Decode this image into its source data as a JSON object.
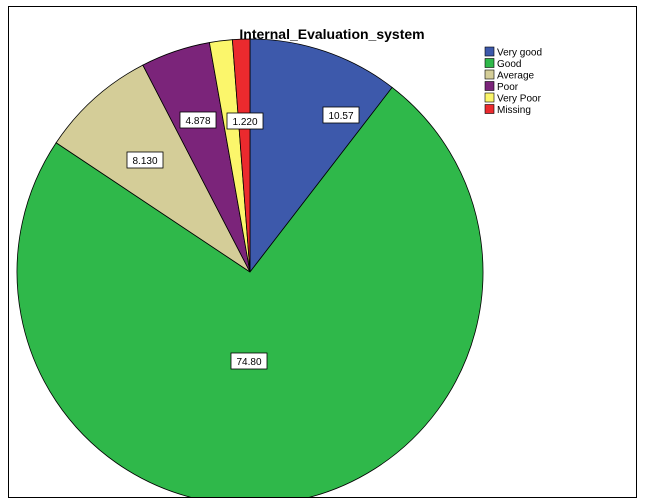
{
  "chart_data": {
    "type": "pie",
    "title": "Internal_Evaluation_system",
    "legend_position": "top-right",
    "start_angle_deg": 0,
    "direction": "clockwise",
    "slices": [
      {
        "name": "Very good",
        "value": 10.57,
        "label": "10.57",
        "color": "#3d59ab"
      },
      {
        "name": "Good",
        "value": 74.8,
        "label": "74.80",
        "color": "#2fb84a"
      },
      {
        "name": "Average",
        "value": 8.13,
        "label": "8.130",
        "color": "#d4cd98"
      },
      {
        "name": "Poor",
        "value": 4.878,
        "label": "4.878",
        "color": "#7b247a"
      },
      {
        "name": "Very Poor",
        "value": 1.6,
        "label": "",
        "color": "#fbf66b"
      },
      {
        "name": "Missing",
        "value": 1.22,
        "label": "1.220",
        "color": "#eb2a2e"
      }
    ]
  }
}
